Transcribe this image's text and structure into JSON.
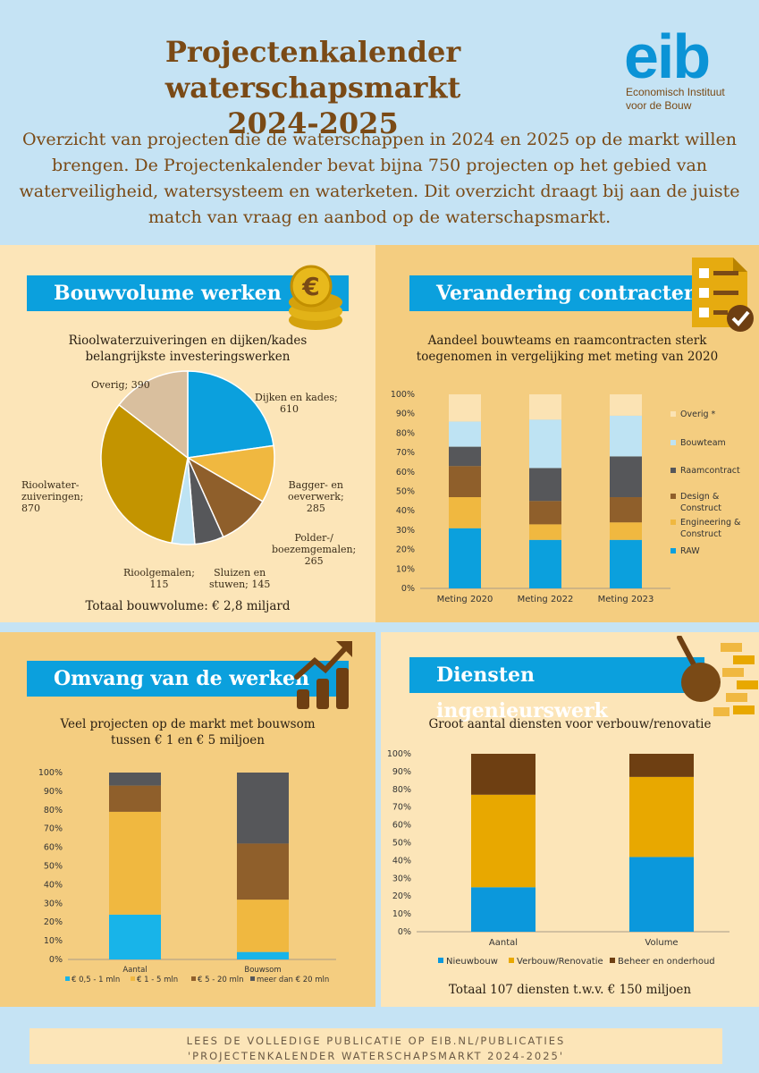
{
  "header": {
    "title_line1": "Projectenkalender waterschapsmarkt",
    "title_line2": "2024-2025",
    "logo": "eib",
    "logo_sub1": "Economisch Instituut",
    "logo_sub2": "voor de Bouw",
    "intro": "Overzicht van projecten die de waterschappen in 2024 en 2025 op de markt willen brengen. De Projectenkalender bevat bijna 750 projecten op het gebied van waterveiligheid, watersysteem en waterketen. Dit overzicht draagt bij aan de juiste match van vraag en aanbod op de waterschapsmarkt."
  },
  "colors": {
    "blue": "#0ba0dd",
    "yellow": "#f0b840",
    "brown": "#8f5f2b",
    "dark": "#56575a",
    "lightblue": "#bee3f3",
    "beige": "#fbe3b4",
    "tan": "#d9bf9e",
    "gold": "#c39400",
    "orange": "#e8a800",
    "darkbrown": "#6e3f12"
  },
  "panels": {
    "bouwvolume": {
      "banner": "Bouwvolume werken",
      "icon": "coins-euro-icon",
      "subtitle1": "Rioolwaterzuiveringen en dijken/kades",
      "subtitle2": "belangrijkste investeringswerken",
      "total": "Totaal bouwvolume: € 2,8 miljard"
    },
    "contracten": {
      "banner": "Verandering contracten",
      "icon": "checklist-icon",
      "subtitle1": "Aandeel bouwteams en raamcontracten sterk",
      "subtitle2": "toegenomen in vergelijking met meting van 2020"
    },
    "omvang": {
      "banner": "Omvang van de werken",
      "icon": "growth-chart-icon",
      "subtitle1": "Veel projecten op de markt met bouwsom",
      "subtitle2": "tussen € 1 en € 5 miljoen"
    },
    "diensten": {
      "banner": "Diensten ingenieurswerk",
      "icon": "wrecking-ball-icon",
      "subtitle1": "Groot aantal diensten voor verbouw/renovatie",
      "total": "Totaal 107 diensten t.w.v. € 150 miljoen"
    }
  },
  "footer": {
    "line1": "LEES DE VOLLEDIGE PUBLICATIE OP EIB.NL/PUBLICATIES",
    "line2": "'PROJECTENKALENDER WATERSCHAPSMARKT 2024-2025'"
  },
  "chart_data": [
    {
      "type": "pie",
      "labels": [
        "Dijken en kades",
        "Bagger- en oeverwerk",
        "Polder-/ boezemgemalen",
        "Sluizen en stuwen",
        "Rioolgemalen",
        "Rioolwater-zuiveringen",
        "Overig"
      ],
      "values": [
        610,
        285,
        265,
        145,
        115,
        870,
        390
      ],
      "label_text": {
        "dijken": [
          "Dijken en kades;",
          "610"
        ],
        "bagger": [
          "Bagger- en",
          "oeverwerk;",
          "285"
        ],
        "polder": [
          "Polder-/",
          "boezemgemalen;",
          "265"
        ],
        "sluizen": [
          "Sluizen en",
          "stuwen; 145"
        ],
        "riool": [
          "Rioolgemalen;",
          "115"
        ],
        "rwzi": [
          "Rioolwater-",
          "zuiveringen;",
          "870"
        ],
        "overig": [
          "Overig; 390"
        ]
      }
    },
    {
      "type": "bar",
      "stacked": true,
      "categories": [
        "Meting 2020",
        "Meting 2022",
        "Meting 2023"
      ],
      "y_ticks": [
        "0%",
        "10%",
        "20%",
        "30%",
        "40%",
        "50%",
        "60%",
        "70%",
        "80%",
        "90%",
        "100%"
      ],
      "series": [
        {
          "name": "RAW",
          "values": [
            31,
            25,
            25
          ]
        },
        {
          "name": "Engineering & Construct",
          "values": [
            16,
            8,
            9
          ]
        },
        {
          "name": "Design & Construct",
          "values": [
            16,
            12,
            13
          ]
        },
        {
          "name": "Raamcontract",
          "values": [
            10,
            17,
            21
          ]
        },
        {
          "name": "Bouwteam",
          "values": [
            13,
            25,
            21
          ]
        },
        {
          "name": "Overig *",
          "values": [
            14,
            13,
            11
          ]
        }
      ],
      "legend_position": "right",
      "legend_lines": [
        [
          "Overig *"
        ],
        [
          "Bouwteam"
        ],
        [
          "Raamcontract"
        ],
        [
          "Design &",
          "Construct"
        ],
        [
          "Engineering &",
          "Construct"
        ],
        [
          "RAW"
        ]
      ]
    },
    {
      "type": "bar",
      "stacked": true,
      "categories": [
        "Aantal",
        "Bouwsom"
      ],
      "y_ticks": [
        "0%",
        "10%",
        "20%",
        "30%",
        "40%",
        "50%",
        "60%",
        "70%",
        "80%",
        "90%",
        "100%"
      ],
      "series": [
        {
          "name": "€ 0,5 - 1 mln",
          "values": [
            24,
            4
          ]
        },
        {
          "name": "€ 1 - 5 mln",
          "values": [
            55,
            28
          ]
        },
        {
          "name": "€ 5 - 20 mln",
          "values": [
            14,
            30
          ]
        },
        {
          "name": "meer dan € 20 mln",
          "values": [
            7,
            38
          ]
        }
      ],
      "legend_position": "bottom"
    },
    {
      "type": "bar",
      "stacked": true,
      "categories": [
        "Aantal",
        "Volume"
      ],
      "y_ticks": [
        "0%",
        "10%",
        "20%",
        "30%",
        "40%",
        "50%",
        "60%",
        "70%",
        "80%",
        "90%",
        "100%"
      ],
      "series": [
        {
          "name": "Nieuwbouw",
          "values": [
            25,
            42
          ]
        },
        {
          "name": "Verbouw/Renovatie",
          "values": [
            52,
            45
          ]
        },
        {
          "name": "Beheer en onderhoud",
          "values": [
            23,
            13
          ]
        }
      ],
      "legend_position": "bottom"
    }
  ]
}
